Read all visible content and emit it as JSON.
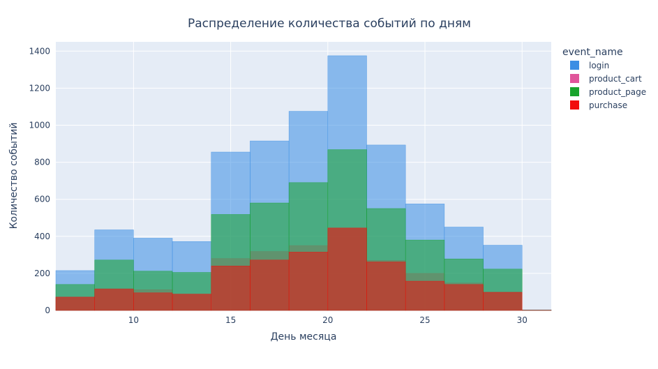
{
  "chart_data": {
    "type": "bar",
    "barmode": "overlay",
    "title": "Распределение количества событий по дням",
    "xlabel": "День месяца",
    "ylabel": "Количество событий",
    "x": [
      7,
      9,
      11,
      13,
      15,
      17,
      19,
      21,
      23,
      25,
      27,
      29,
      31
    ],
    "bin_width": 2,
    "xlim": [
      6,
      31.5
    ],
    "ylim": [
      0,
      1450
    ],
    "xticks": [
      10,
      15,
      20,
      25,
      30
    ],
    "yticks": [
      0,
      200,
      400,
      600,
      800,
      1000,
      1200,
      1400
    ],
    "grid": true,
    "legend": {
      "title": "event_name",
      "position": "top-right"
    },
    "series": [
      {
        "name": "login",
        "color": "#3b8ee4",
        "values": [
          215,
          435,
          390,
          372,
          855,
          915,
          1075,
          1375,
          893,
          575,
          450,
          352,
          3
        ]
      },
      {
        "name": "product_cart",
        "color": "#e0559b",
        "values": [
          72,
          118,
          112,
          88,
          280,
          318,
          350,
          445,
          270,
          200,
          148,
          98,
          1
        ]
      },
      {
        "name": "product_page",
        "color": "#18a32c",
        "values": [
          140,
          272,
          212,
          205,
          518,
          580,
          690,
          868,
          550,
          380,
          278,
          223,
          2
        ]
      },
      {
        "name": "purchase",
        "color": "#f20d0d",
        "values": [
          72,
          115,
          95,
          88,
          240,
          272,
          315,
          445,
          262,
          158,
          140,
          98,
          1
        ]
      }
    ]
  }
}
